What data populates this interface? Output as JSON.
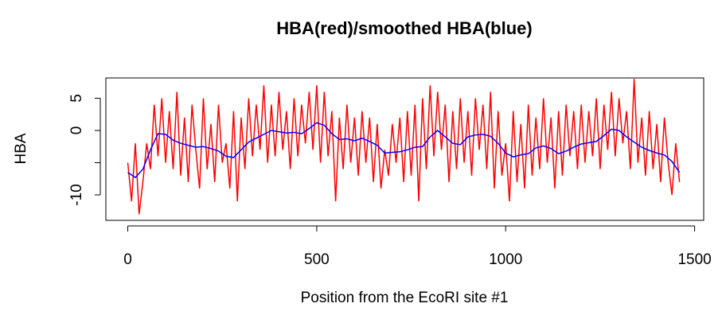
{
  "chart_data": {
    "type": "line",
    "title": "HBA(red)/smoothed HBA(blue)",
    "xlabel": "Position from the EcoRI site #1",
    "ylabel": "HBA",
    "xlim": [
      -58,
      1524
    ],
    "ylim": [
      -13.95,
      8.15
    ],
    "xticks": [
      0,
      500,
      1000,
      1500
    ],
    "yticks": [
      5,
      0,
      {
        "value": -5,
        "label": null
      },
      -10
    ],
    "series": [
      {
        "name": "HBA",
        "color": "#ff0000",
        "x": [
          0,
          10,
          20,
          30,
          40,
          50,
          60,
          70,
          80,
          90,
          100,
          110,
          120,
          130,
          140,
          150,
          160,
          170,
          180,
          190,
          200,
          210,
          220,
          230,
          240,
          250,
          260,
          270,
          280,
          290,
          300,
          310,
          320,
          330,
          340,
          350,
          360,
          370,
          380,
          390,
          400,
          410,
          420,
          430,
          440,
          450,
          460,
          470,
          480,
          490,
          500,
          510,
          520,
          530,
          540,
          550,
          560,
          570,
          580,
          590,
          600,
          610,
          620,
          630,
          640,
          650,
          660,
          670,
          680,
          690,
          700,
          710,
          720,
          730,
          740,
          750,
          760,
          770,
          780,
          790,
          800,
          810,
          820,
          830,
          840,
          850,
          860,
          870,
          880,
          890,
          900,
          910,
          920,
          930,
          940,
          950,
          960,
          970,
          980,
          990,
          1000,
          1010,
          1020,
          1030,
          1040,
          1050,
          1060,
          1070,
          1080,
          1090,
          1100,
          1110,
          1120,
          1130,
          1140,
          1150,
          1160,
          1170,
          1180,
          1190,
          1200,
          1210,
          1220,
          1230,
          1240,
          1250,
          1260,
          1270,
          1280,
          1290,
          1300,
          1310,
          1320,
          1330,
          1340,
          1350,
          1360,
          1370,
          1380,
          1390,
          1400,
          1410,
          1420,
          1430,
          1440,
          1450,
          1460
        ],
        "values": [
          -5,
          -11,
          -2,
          -13,
          -8,
          -2,
          -6,
          4,
          -4,
          5,
          -5,
          3,
          -6,
          6,
          -7,
          2,
          -8,
          4,
          -3,
          -9,
          5,
          -6,
          1,
          -8,
          4,
          -5,
          -2,
          -9,
          3,
          -11,
          2,
          -6,
          5,
          -4,
          4,
          -3,
          7,
          -5,
          4,
          -4,
          6,
          -3,
          3,
          -6,
          5,
          -4,
          4,
          -2,
          6,
          -3,
          7,
          -5,
          6,
          -4,
          3,
          -11,
          2,
          -6,
          4,
          -5,
          2,
          -7,
          3,
          -5,
          2,
          -8,
          1,
          -9,
          -3,
          -7,
          1,
          -5,
          2,
          -8,
          3,
          -7,
          4,
          -11,
          5,
          -6,
          7,
          -4,
          6,
          -3,
          4,
          -8,
          3,
          -6,
          5,
          -5,
          3,
          -7,
          5,
          -3,
          4,
          -6,
          6,
          -9,
          3,
          -7,
          -2,
          -11,
          3,
          -8,
          1,
          -9,
          4,
          -7,
          2,
          -6,
          5,
          -5,
          2,
          -9,
          3,
          -7,
          4,
          -4,
          3,
          -6,
          4,
          -5,
          3,
          -4,
          5,
          -6,
          4,
          -3,
          6,
          -4,
          5,
          -2,
          3,
          -6,
          8,
          -5,
          2,
          -7,
          3,
          -6,
          1,
          -8,
          2,
          -5,
          -10,
          -2,
          -8
        ]
      },
      {
        "name": "smoothed HBA",
        "color": "#0000ff",
        "x": [
          0,
          20,
          40,
          60,
          80,
          100,
          120,
          140,
          160,
          180,
          200,
          220,
          240,
          260,
          280,
          300,
          320,
          340,
          360,
          380,
          400,
          420,
          440,
          460,
          480,
          500,
          520,
          540,
          560,
          580,
          600,
          620,
          640,
          660,
          680,
          700,
          720,
          740,
          760,
          780,
          800,
          820,
          840,
          860,
          880,
          900,
          920,
          940,
          960,
          980,
          1000,
          1020,
          1040,
          1060,
          1080,
          1100,
          1120,
          1140,
          1160,
          1180,
          1200,
          1220,
          1240,
          1260,
          1280,
          1300,
          1320,
          1340,
          1360,
          1380,
          1400,
          1420,
          1440,
          1460
        ],
        "values": [
          -6.5,
          -7.3,
          -6,
          -3,
          -0.5,
          -0.6,
          -1.5,
          -2,
          -2.3,
          -2.6,
          -2.5,
          -2.8,
          -3.2,
          -4,
          -4.2,
          -3,
          -1.8,
          -1.2,
          -0.6,
          0,
          -0.2,
          -0.4,
          -0.3,
          -0.5,
          0.3,
          1.2,
          0.8,
          -0.5,
          -1.4,
          -1.3,
          -1.6,
          -1.2,
          -1.7,
          -2.3,
          -3.5,
          -3.4,
          -3.3,
          -3,
          -2.6,
          -2.5,
          -1,
          0,
          -1,
          -2,
          -2.2,
          -1,
          -0.7,
          -0.6,
          -0.9,
          -2,
          -3.5,
          -4.1,
          -3.8,
          -3.6,
          -2.7,
          -2.4,
          -2.8,
          -3.6,
          -3.2,
          -2.6,
          -2.1,
          -1.9,
          -1.7,
          -0.8,
          0.2,
          0,
          -1,
          -1.8,
          -2.6,
          -3.1,
          -3.5,
          -3.8,
          -4.8,
          -6.5
        ]
      }
    ]
  }
}
